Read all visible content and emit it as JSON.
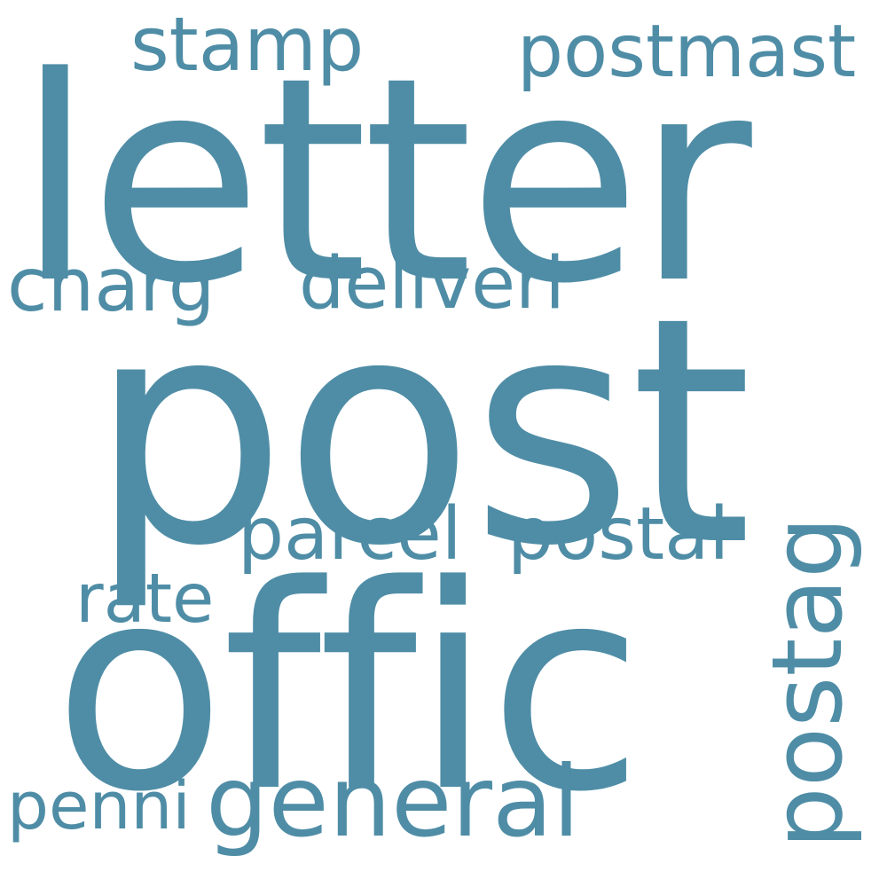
{
  "accent_color": "#4f8da6",
  "background_color": "#ffffff",
  "words": {
    "letter": "letter",
    "post": "post",
    "offic": "offic",
    "stamp": "stamp",
    "postmast": "postmast",
    "charg": "charg",
    "deliveri": "deliveri",
    "parcel": "parcel",
    "postal": "postal",
    "rate": "rate",
    "penni": "penni",
    "general": "general",
    "postag": "postag"
  }
}
